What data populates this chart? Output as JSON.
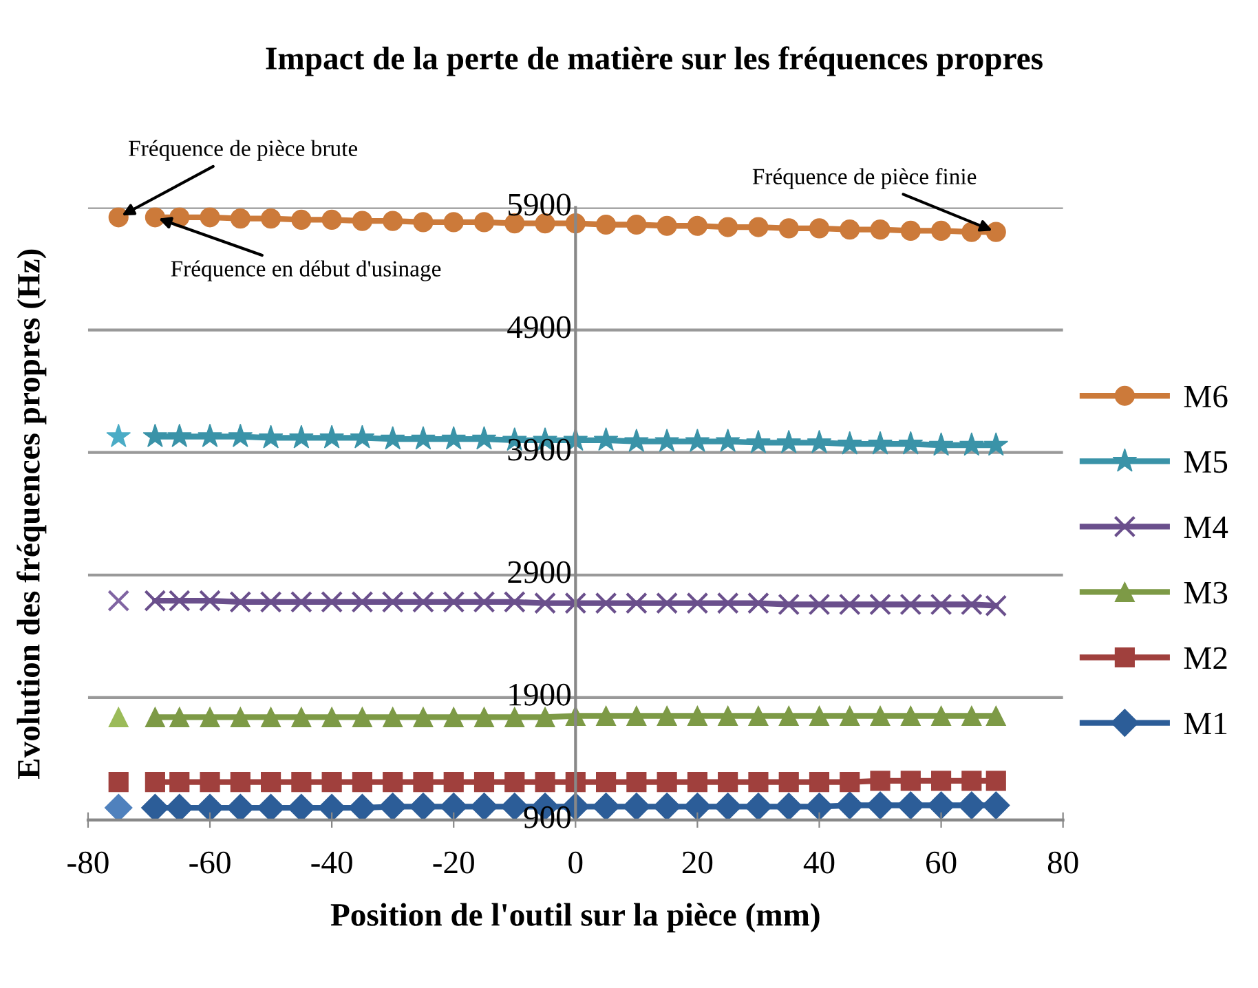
{
  "chart_data": {
    "type": "line",
    "title": "Impact de la perte de matière sur les fréquences propres",
    "xlabel": "Position de l'outil sur la pièce (mm)",
    "ylabel": "Evolution des fréquences propres (Hz)",
    "xlim": [
      -80,
      80
    ],
    "xticks": [
      -80,
      -60,
      -40,
      -20,
      0,
      20,
      40,
      60,
      80
    ],
    "ylim": [
      900,
      5900
    ],
    "yticks": [
      900,
      1900,
      2900,
      3900,
      4900,
      5900
    ],
    "grid": "y",
    "legend": "right",
    "line_style": "solid",
    "series": [
      {
        "name": "M1",
        "color": "#2c5d98",
        "marker": "diamond",
        "x": [
          -69,
          -65,
          -60,
          -55,
          -50,
          -45,
          -40,
          -35,
          -30,
          -25,
          -20,
          -15,
          -10,
          -5,
          0,
          5,
          10,
          15,
          20,
          25,
          30,
          35,
          40,
          45,
          50,
          55,
          60,
          65,
          69
        ],
        "values": [
          1000,
          1000,
          1000,
          1000,
          1000,
          1000,
          1000,
          1000,
          1010,
          1010,
          1010,
          1010,
          1010,
          1010,
          1010,
          1010,
          1010,
          1010,
          1010,
          1010,
          1010,
          1010,
          1010,
          1020,
          1020,
          1020,
          1020,
          1020,
          1020
        ]
      },
      {
        "name": "M2",
        "color": "#a0403d",
        "marker": "square",
        "x": [
          -69,
          -65,
          -60,
          -55,
          -50,
          -45,
          -40,
          -35,
          -30,
          -25,
          -20,
          -15,
          -10,
          -5,
          0,
          5,
          10,
          15,
          20,
          25,
          30,
          35,
          40,
          45,
          50,
          55,
          60,
          65,
          69
        ],
        "values": [
          1210,
          1210,
          1210,
          1210,
          1210,
          1210,
          1210,
          1210,
          1210,
          1210,
          1210,
          1210,
          1210,
          1210,
          1210,
          1210,
          1210,
          1210,
          1210,
          1210,
          1210,
          1210,
          1210,
          1210,
          1220,
          1220,
          1220,
          1220,
          1220
        ]
      },
      {
        "name": "M3",
        "color": "#7d9a46",
        "marker": "triangle",
        "x": [
          -69,
          -65,
          -60,
          -55,
          -50,
          -45,
          -40,
          -35,
          -30,
          -25,
          -20,
          -15,
          -10,
          -5,
          0,
          5,
          10,
          15,
          20,
          25,
          30,
          35,
          40,
          45,
          50,
          55,
          60,
          65,
          69
        ],
        "values": [
          1740,
          1740,
          1740,
          1740,
          1740,
          1740,
          1740,
          1740,
          1740,
          1740,
          1740,
          1740,
          1740,
          1740,
          1750,
          1750,
          1750,
          1750,
          1750,
          1750,
          1750,
          1750,
          1750,
          1750,
          1750,
          1750,
          1750,
          1750,
          1750
        ]
      },
      {
        "name": "M4",
        "color": "#6a4f8c",
        "marker": "cross",
        "x": [
          -69,
          -65,
          -60,
          -55,
          -50,
          -45,
          -40,
          -35,
          -30,
          -25,
          -20,
          -15,
          -10,
          -5,
          0,
          5,
          10,
          15,
          20,
          25,
          30,
          35,
          40,
          45,
          50,
          55,
          60,
          65,
          69
        ],
        "values": [
          2690,
          2690,
          2690,
          2680,
          2680,
          2680,
          2680,
          2680,
          2680,
          2680,
          2680,
          2680,
          2680,
          2670,
          2670,
          2670,
          2670,
          2670,
          2670,
          2670,
          2670,
          2660,
          2660,
          2660,
          2660,
          2660,
          2660,
          2660,
          2650
        ]
      },
      {
        "name": "M5",
        "color": "#3a93a8",
        "marker": "star",
        "x": [
          -69,
          -65,
          -60,
          -55,
          -50,
          -45,
          -40,
          -35,
          -30,
          -25,
          -20,
          -15,
          -10,
          -5,
          0,
          5,
          10,
          15,
          20,
          25,
          30,
          35,
          40,
          45,
          50,
          55,
          60,
          65,
          69
        ],
        "values": [
          4030,
          4030,
          4030,
          4030,
          4020,
          4020,
          4020,
          4020,
          4010,
          4010,
          4010,
          4010,
          4000,
          4000,
          4000,
          4000,
          3990,
          3990,
          3990,
          3990,
          3980,
          3980,
          3980,
          3970,
          3970,
          3970,
          3960,
          3960,
          3960
        ]
      },
      {
        "name": "M6",
        "color": "#cc7a3a",
        "marker": "circle",
        "x": [
          -69,
          -65,
          -60,
          -55,
          -50,
          -45,
          -40,
          -35,
          -30,
          -25,
          -20,
          -15,
          -10,
          -5,
          0,
          5,
          10,
          15,
          20,
          25,
          30,
          35,
          40,
          45,
          50,
          55,
          60,
          65,
          69
        ],
        "values": [
          5820,
          5820,
          5820,
          5810,
          5810,
          5800,
          5800,
          5790,
          5790,
          5780,
          5780,
          5780,
          5770,
          5770,
          5770,
          5760,
          5760,
          5750,
          5750,
          5740,
          5740,
          5730,
          5730,
          5720,
          5720,
          5710,
          5710,
          5700,
          5700
        ]
      },
      {
        "type": "scatter",
        "color": "#4f81bd",
        "marker": "diamond",
        "x": [
          -75
        ],
        "values": [
          1000
        ]
      },
      {
        "type": "scatter",
        "color": "#a0403d",
        "marker": "square",
        "x": [
          -75
        ],
        "values": [
          1210
        ]
      },
      {
        "type": "scatter",
        "color": "#9bbb59",
        "marker": "triangle",
        "x": [
          -75
        ],
        "values": [
          1740
        ]
      },
      {
        "type": "scatter",
        "color": "#8064a2",
        "marker": "cross",
        "x": [
          -75
        ],
        "values": [
          2690
        ]
      },
      {
        "type": "scatter",
        "color": "#4bacc6",
        "marker": "star",
        "x": [
          -75
        ],
        "values": [
          4030
        ]
      },
      {
        "type": "scatter",
        "color": "#cc7a3a",
        "marker": "circle",
        "x": [
          -75
        ],
        "values": [
          5820
        ]
      }
    ],
    "annotations": [
      {
        "text": "Fréquence de pièce brute",
        "x": -75,
        "y": 5820
      },
      {
        "text": "Fréquence en début d'usinage",
        "x": -69,
        "y": 5820
      },
      {
        "text": "Fréquence de pièce finie",
        "x": 69,
        "y": 5700
      }
    ]
  }
}
